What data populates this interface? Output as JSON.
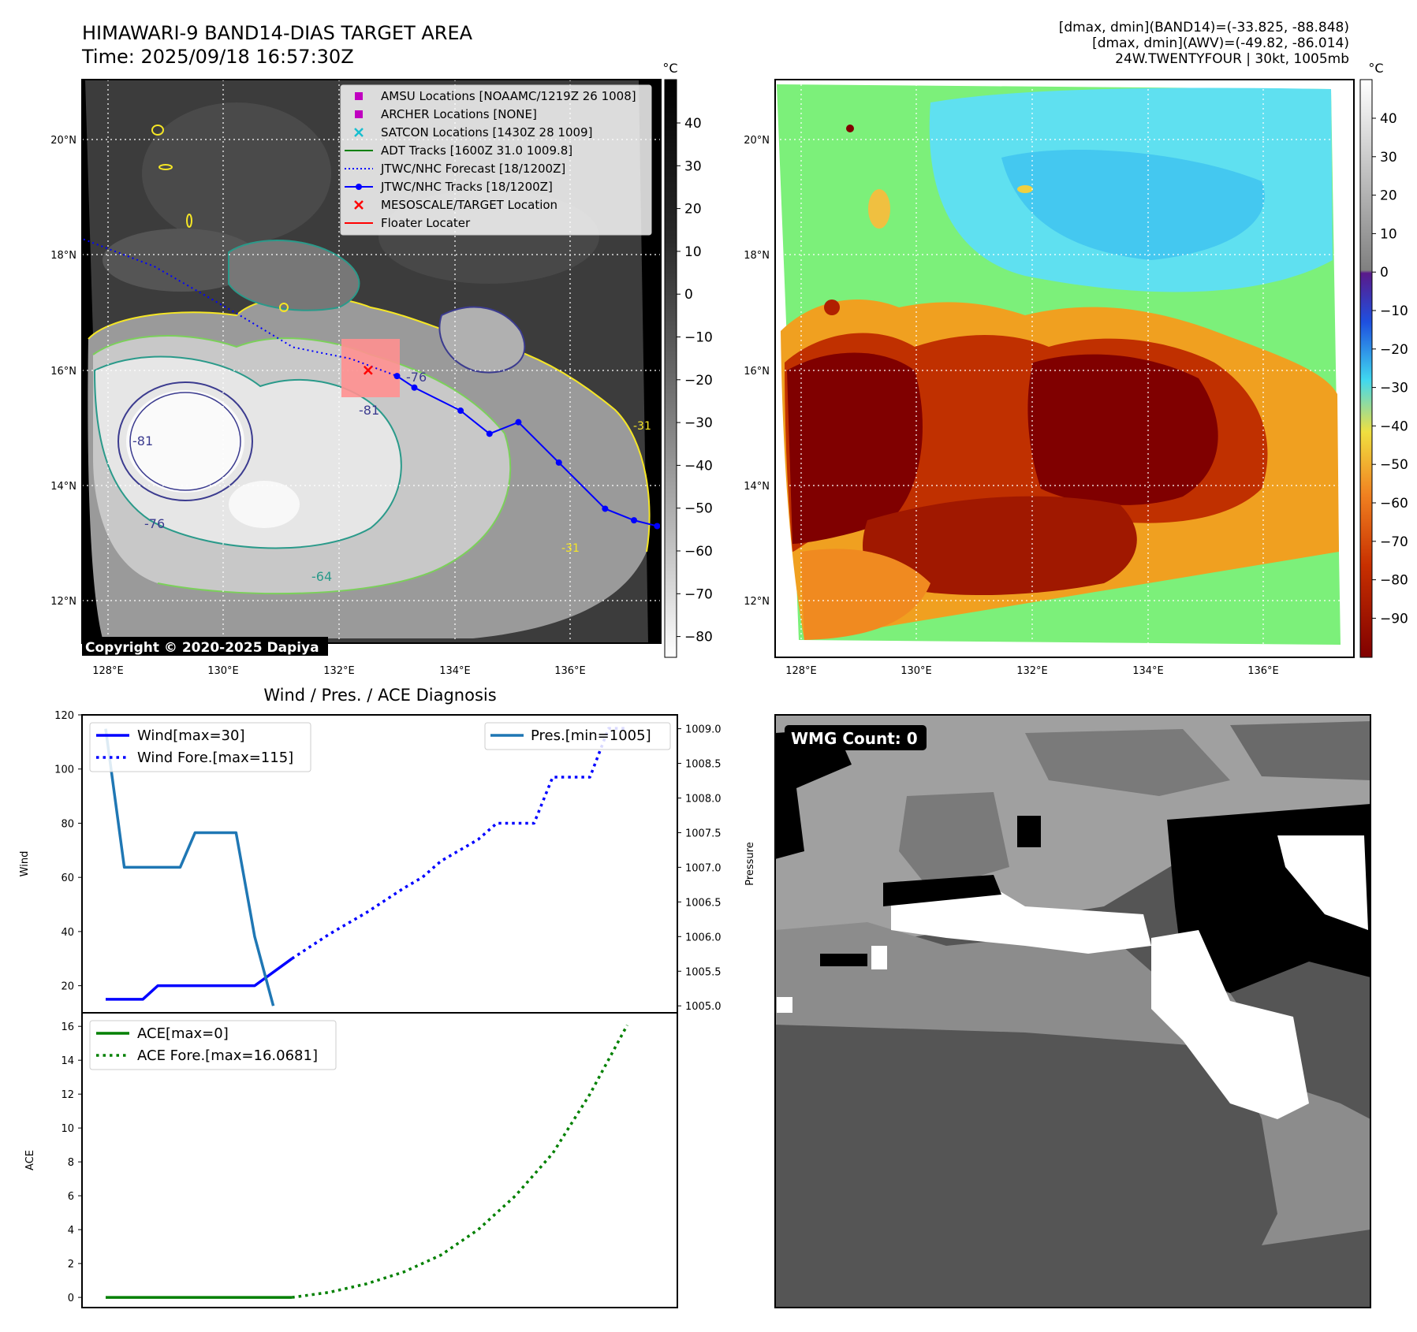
{
  "header": {
    "title_line1": "HIMAWARI-9 BAND14-DIAS TARGET AREA",
    "title_line2": "Time: 2025/09/18 16:57:30Z",
    "info_line1": "[dmax, dmin](BAND14)=(-33.825, -88.848)",
    "info_line2": "[dmax, dmin](AWV)=(-49.82, -86.014)",
    "info_line3": "24W.TWENTYFOUR | 30kt, 1005mb"
  },
  "map_ir": {
    "copyright": "Copyright © 2020-2025 Dapiya",
    "lon_ticks": [
      "128°E",
      "130°E",
      "132°E",
      "134°E",
      "136°E"
    ],
    "lat_ticks": [
      "20°N",
      "18°N",
      "16°N",
      "14°N",
      "12°N"
    ],
    "colorbar_unit": "°C",
    "colorbar_ticks": [
      "40",
      "30",
      "20",
      "10",
      "0",
      "−10",
      "−20",
      "−30",
      "−40",
      "−50",
      "−60",
      "−70",
      "−80"
    ],
    "contour_labels": [
      "-76",
      "-81",
      "-81",
      "-76",
      "-64",
      "-31",
      "-31"
    ],
    "legend": [
      {
        "label": "AMSU Locations [NOAAMC/1219Z 26 1008]",
        "marker": "square",
        "color": "#c000c0"
      },
      {
        "label": "ARCHER Locations [NONE]",
        "marker": "square",
        "color": "#c000c0"
      },
      {
        "label": "SATCON Locations [1430Z 28 1009]",
        "marker": "x",
        "color": "#17becf"
      },
      {
        "label": "ADT Tracks [1600Z 31.0 1009.8]",
        "marker": "line",
        "color": "#008000"
      },
      {
        "label": "JTWC/NHC Forecast [18/1200Z]",
        "marker": "dotted",
        "color": "#0000ff"
      },
      {
        "label": "JTWC/NHC Tracks [18/1200Z]",
        "marker": "line-dot",
        "color": "#0000ff"
      },
      {
        "label": "MESOSCALE/TARGET Location",
        "marker": "x",
        "color": "#ff0000"
      },
      {
        "label": "Floater Locater",
        "marker": "line",
        "color": "#ff0000"
      }
    ],
    "track_points": [
      [
        133.0,
        15.9
      ],
      [
        133.3,
        15.7
      ],
      [
        134.1,
        15.3
      ],
      [
        134.6,
        14.9
      ],
      [
        135.1,
        15.1
      ],
      [
        135.8,
        14.4
      ],
      [
        136.6,
        13.6
      ],
      [
        137.1,
        13.4
      ],
      [
        137.5,
        13.3
      ]
    ],
    "forecast_track": [
      [
        127.5,
        18.3
      ],
      [
        128.8,
        17.8
      ],
      [
        130.2,
        17.0
      ],
      [
        131.2,
        16.4
      ],
      [
        132.2,
        16.2
      ],
      [
        133.0,
        15.9
      ]
    ]
  },
  "map_awv": {
    "lon_ticks": [
      "128°E",
      "130°E",
      "132°E",
      "134°E",
      "136°E"
    ],
    "lat_ticks": [
      "20°N",
      "18°N",
      "16°N",
      "14°N",
      "12°N"
    ],
    "colorbar_unit": "°C",
    "colorbar_ticks": [
      "40",
      "30",
      "20",
      "10",
      "0",
      "−10",
      "−20",
      "−30",
      "−40",
      "−50",
      "−60",
      "−70",
      "−80",
      "−90"
    ]
  },
  "wmg": {
    "label": "WMG Count: 0"
  },
  "chart_data": [
    {
      "type": "line",
      "title": "Wind / Pres. / ACE Diagnosis",
      "ylabel": "Wind",
      "ylim": [
        10,
        120
      ],
      "y_ticks": [
        "20",
        "40",
        "60",
        "80",
        "100",
        "120"
      ],
      "y2label": "Pressure",
      "y2lim": [
        1004.9,
        1009.2
      ],
      "y2_ticks": [
        "1005.0",
        "1005.5",
        "1006.0",
        "1006.5",
        "1007.0",
        "1007.5",
        "1008.0",
        "1008.5",
        "1009.0"
      ],
      "x_range": [
        0,
        14.5
      ],
      "series": [
        {
          "name": "Wind[max=30]",
          "axis": "left",
          "style": "solid",
          "color": "#0000ff",
          "x": [
            0,
            1,
            1.4,
            2,
            3,
            4,
            5
          ],
          "values": [
            15,
            15,
            20,
            20,
            20,
            20,
            30
          ]
        },
        {
          "name": "Wind Fore.[max=115]",
          "axis": "left",
          "style": "dotted",
          "color": "#0000ff",
          "x": [
            5,
            6,
            7,
            8,
            8.5,
            9,
            10,
            10.5,
            11,
            11.5,
            12,
            12.5,
            13,
            13.5,
            14
          ],
          "values": [
            30,
            39,
            47,
            56,
            60,
            66,
            74,
            80,
            80,
            80,
            97,
            97,
            97,
            115,
            115
          ]
        },
        {
          "name": "Pres.[min=1005]",
          "axis": "right",
          "style": "solid",
          "color": "#1f77b4",
          "x": [
            0,
            0.5,
            2,
            2.4,
            3,
            3.5,
            4,
            4.5
          ],
          "values": [
            1009.0,
            1007.0,
            1007.0,
            1007.5,
            1007.5,
            1007.5,
            1006.0,
            1005.0
          ]
        }
      ]
    },
    {
      "type": "line",
      "ylabel": "ACE",
      "ylim": [
        -0.6,
        16.8
      ],
      "y_ticks": [
        "0",
        "2",
        "4",
        "6",
        "8",
        "10",
        "12",
        "14",
        "16"
      ],
      "x_range": [
        0,
        14.5
      ],
      "series": [
        {
          "name": "ACE[max=0]",
          "style": "solid",
          "color": "#008000",
          "x": [
            0,
            1,
            2,
            3,
            4,
            5
          ],
          "values": [
            0,
            0,
            0,
            0,
            0,
            0
          ]
        },
        {
          "name": "ACE Fore.[max=16.0681]",
          "style": "dotted",
          "color": "#008000",
          "x": [
            5,
            6,
            7,
            8,
            9,
            10,
            11,
            12,
            13,
            14
          ],
          "values": [
            0,
            0.3,
            0.8,
            1.5,
            2.5,
            4.0,
            6.0,
            8.5,
            12.0,
            16.07
          ]
        }
      ]
    }
  ]
}
